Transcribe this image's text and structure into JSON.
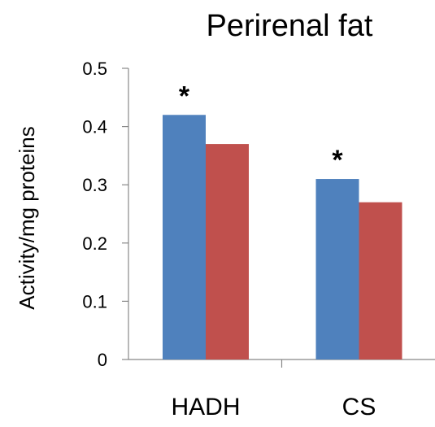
{
  "chart_data": {
    "type": "bar",
    "title": "Perirenal fat",
    "xlabel": "",
    "ylabel": "Activity/mg proteins",
    "categories": [
      "HADH",
      "CS"
    ],
    "series": [
      {
        "values": [
          0.42,
          0.31
        ],
        "color": "#4f81bd"
      },
      {
        "values": [
          0.37,
          0.27
        ],
        "color": "#c0504d"
      }
    ],
    "ylim": [
      0,
      0.5
    ],
    "yticks": [
      0,
      0.1,
      0.2,
      0.3,
      0.4,
      0.5
    ],
    "ytick_labels": [
      "0",
      "0.1",
      "0.2",
      "0.3",
      "0.4",
      "0.5"
    ],
    "annotations": [
      "*",
      "*"
    ],
    "grid": false,
    "legend": "none"
  }
}
